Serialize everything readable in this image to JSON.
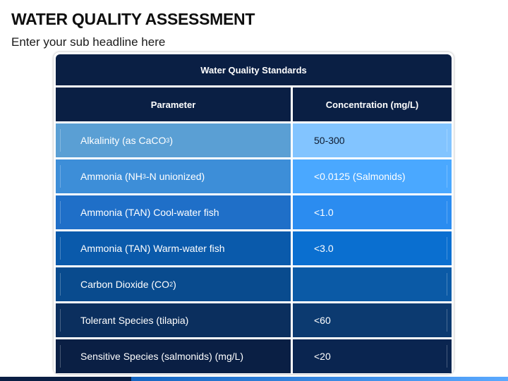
{
  "title": "WATER QUALITY ASSESSMENT",
  "subtitle": "Enter your sub headline here",
  "table": {
    "caption": "Water Quality Standards",
    "headers": [
      "Parameter",
      "Concentration (mg/L)"
    ],
    "rows": [
      {
        "param_pre": "Alkalinity (as CaCO",
        "param_sub": "3",
        "param_post": ")",
        "value": "50-300",
        "color_left": "#5a9fd4",
        "color_right": "#82c4ff",
        "text_color_right": "#0f1a2e"
      },
      {
        "param_pre": "Ammonia (NH",
        "param_sub": "3",
        "param_post": "-N unionized)",
        "value": "<0.0125 (Salmonids)",
        "color_left": "#3d8ed8",
        "color_right": "#4aa8ff",
        "text_color_right": "#ffffff"
      },
      {
        "param_pre": "Ammonia (TAN) Cool-water fish",
        "param_sub": "",
        "param_post": "",
        "value": "<1.0",
        "color_left": "#1f6fc8",
        "color_right": "#2b8cf0",
        "text_color_right": "#ffffff"
      },
      {
        "param_pre": "Ammonia (TAN) Warm-water fish",
        "param_sub": "",
        "param_post": "",
        "value": "<3.0",
        "color_left": "#0a5aab",
        "color_right": "#0a6fd0",
        "text_color_right": "#ffffff"
      },
      {
        "param_pre": "Carbon Dioxide (CO",
        "param_sub": "2",
        "param_post": ")",
        "value": "",
        "color_left": "#094b8e",
        "color_right": "#0b5aa6",
        "text_color_right": "#ffffff"
      },
      {
        "param_pre": "Tolerant Species (tilapia)",
        "param_sub": "",
        "param_post": "",
        "value": "<60",
        "color_left": "#0b2f5e",
        "color_right": "#0c3a70",
        "text_color_right": "#ffffff"
      },
      {
        "param_pre": "Sensitive Species (salmonids) (mg/L)",
        "param_sub": "",
        "param_post": "",
        "value": "<20",
        "color_left": "#0a1f44",
        "color_right": "#0a2550",
        "text_color_right": "#ffffff"
      }
    ]
  }
}
